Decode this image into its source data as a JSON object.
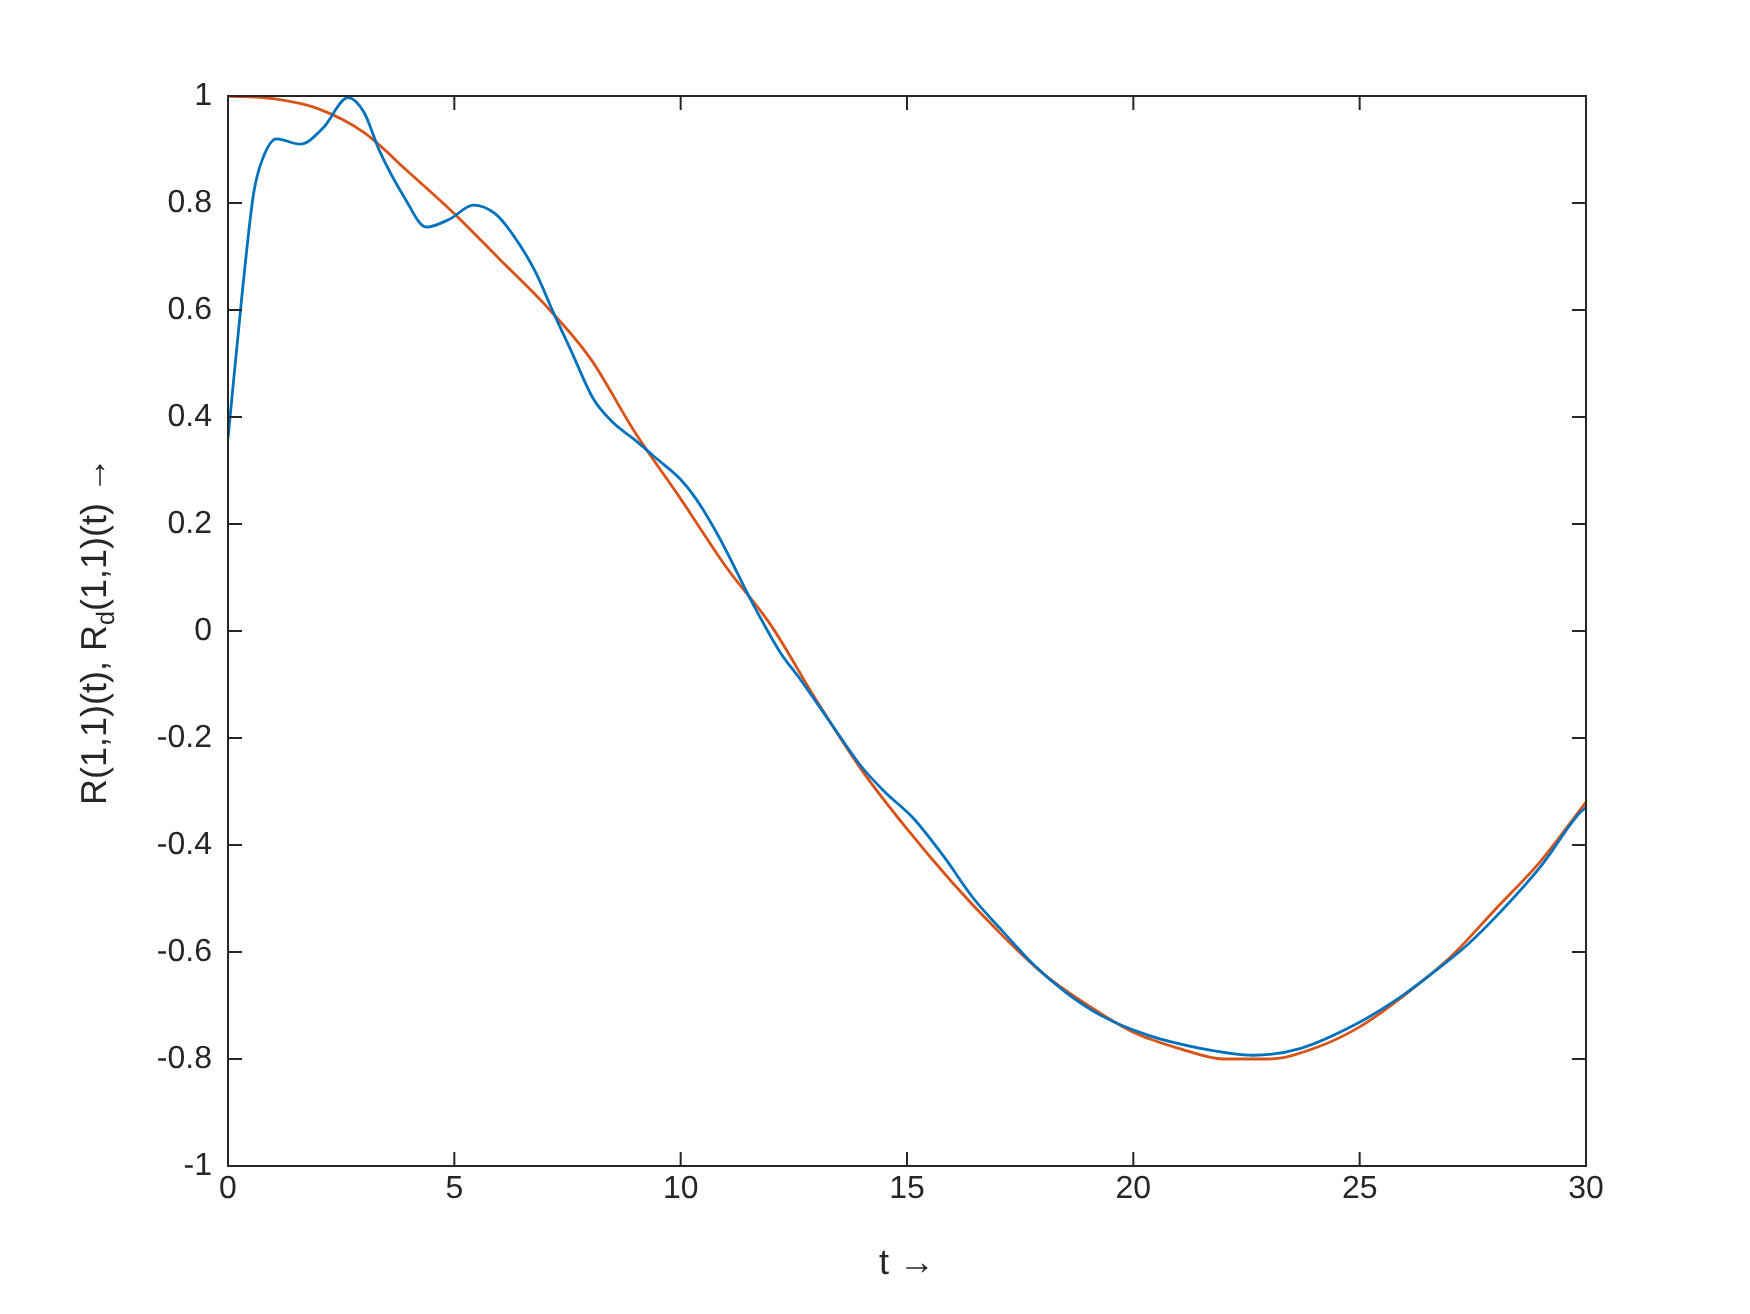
{
  "chart_data": {
    "type": "line",
    "xlabel": "t →",
    "ylabel": "R(1,1)(t), R$_{d}$(1,1)(t) →",
    "xlim": [
      0,
      30
    ],
    "ylim": [
      -1,
      1
    ],
    "xticks": [
      0,
      5,
      10,
      15,
      20,
      25,
      30
    ],
    "yticks": [
      -1,
      -0.8,
      -0.6,
      -0.4,
      -0.2,
      0,
      0.2,
      0.4,
      0.6,
      0.8,
      1
    ],
    "grid": false,
    "legend": false,
    "marker": "none",
    "line_style": "solid",
    "series": [
      {
        "color": "#0072bd",
        "x": [
          0,
          0.3,
          0.57,
          0.8,
          1.07,
          1.6,
          2.1,
          2.65,
          3.0,
          3.36,
          3.9,
          4.38,
          4.9,
          5.42,
          5.9,
          6.3,
          6.8,
          7.19,
          7.6,
          8.07,
          8.5,
          8.96,
          9.5,
          9.99,
          10.34,
          10.87,
          11.6,
          12.2,
          12.64,
          13.3,
          13.96,
          14.5,
          15.14,
          15.8,
          16.47,
          17.1,
          17.8,
          18.5,
          19.27,
          20.3,
          21.48,
          22.65,
          23.7,
          24.87,
          25.8,
          26.63,
          27.4,
          28.1,
          29.0,
          29.87,
          30
        ],
        "values": [
          0.36,
          0.62,
          0.82,
          0.89,
          0.92,
          0.91,
          0.94,
          0.997,
          0.97,
          0.895,
          0.81,
          0.755,
          0.77,
          0.796,
          0.78,
          0.74,
          0.67,
          0.595,
          0.52,
          0.434,
          0.39,
          0.359,
          0.32,
          0.284,
          0.247,
          0.172,
          0.05,
          -0.04,
          -0.09,
          -0.17,
          -0.25,
          -0.3,
          -0.35,
          -0.42,
          -0.5,
          -0.56,
          -0.624,
          -0.675,
          -0.718,
          -0.755,
          -0.78,
          -0.793,
          -0.78,
          -0.737,
          -0.69,
          -0.638,
          -0.585,
          -0.526,
          -0.44,
          -0.339,
          -0.33
        ]
      },
      {
        "color": "#d95319",
        "x": [
          0,
          1,
          2,
          3,
          4,
          5,
          6,
          7,
          8,
          9,
          10,
          11,
          12,
          13,
          14,
          15,
          16,
          17,
          18,
          19,
          20,
          21,
          22,
          23,
          24,
          25,
          26,
          27,
          28,
          29,
          30
        ],
        "values": [
          1.0,
          0.995,
          0.976,
          0.932,
          0.857,
          0.78,
          0.695,
          0.61,
          0.51,
          0.37,
          0.247,
          0.12,
          0.01,
          -0.13,
          -0.26,
          -0.37,
          -0.47,
          -0.56,
          -0.64,
          -0.7,
          -0.75,
          -0.78,
          -0.8,
          -0.8,
          -0.78,
          -0.74,
          -0.68,
          -0.61,
          -0.52,
          -0.43,
          -0.32
        ]
      }
    ]
  }
}
